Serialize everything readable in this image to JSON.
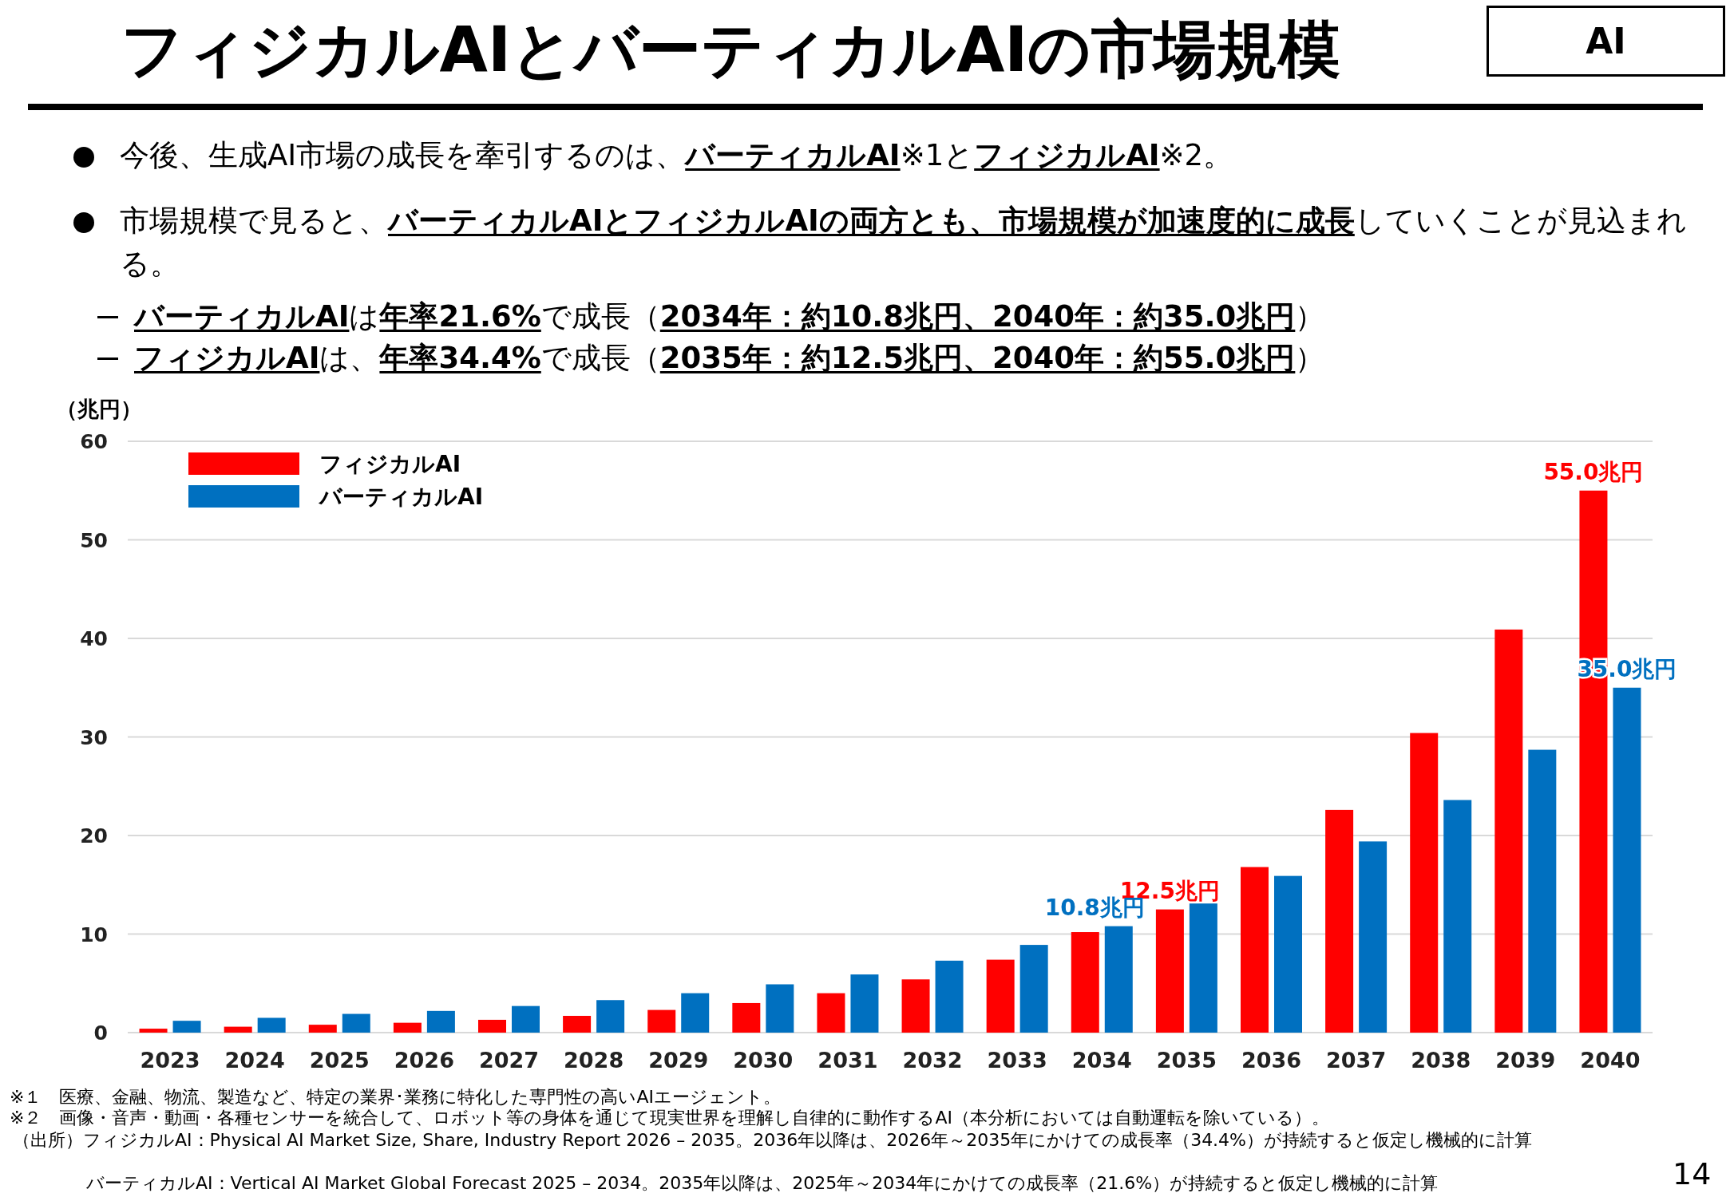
{
  "chart_data": {
    "type": "bar",
    "title": "フィジカルAIとバーティカルAIの市場規模",
    "ylabel": "（兆円）",
    "annotations": [
      "AI",
      "今後、生成AI市場の成長を牽引するのは、**バーティカルAI**※1と**フィジカルAI**※2。",
      "市場規模で見ると、**バーティカルAIとフィジカルAIの両方とも、市場規模が加速度的に成長**していくことが見込まれる。",
      "**バーティカルAI**は**年率21.6%**で成長（**2034年：約10.8兆円、2040年：約35.0兆円**）",
      "**フィジカルAI**は、**年率34.4%**で成長（**2035年：約12.5兆円、2040年：約55.0兆円**）",
      "※１　医療、金融、物流、製造など、特定の業界･業務に特化した専門性の高いAIエージェント。",
      "※２　画像・音声・動画・各種センサーを統合して、ロボット等の身体を通じて現実世界を理解し自律的に動作するAI（本分析においては自動運転を除いている）。",
      "（出所）フィジカルAI：Physical AI Market Size, Share, Industry Report 2026 – 2035。2036年以降は、2026年～2035年にかけての成長率（34.4%）が持続すると仮定し機械的に計算",
      "バーティカルAI：Vertical AI Market Global Forecast 2025 – 2034。2035年以降は、2025年～2034年にかけての成長率（21.6%）が持続すると仮定し機械的に計算",
      "14"
    ],
    "categories": [
      "2023",
      "2024",
      "2025",
      "2026",
      "2027",
      "2028",
      "2029",
      "2030",
      "2031",
      "2032",
      "2033",
      "2034",
      "2035",
      "2036",
      "2037",
      "2038",
      "2039",
      "2040"
    ],
    "series": [
      {
        "name": "フィジカルAI",
        "color": "#ff0000",
        "values": [
          0.4,
          0.6,
          0.8,
          1.0,
          1.3,
          1.7,
          2.3,
          3.0,
          4.0,
          5.4,
          7.4,
          10.2,
          12.5,
          16.8,
          22.6,
          30.4,
          40.9,
          55.0
        ],
        "value_labels": [
          null,
          null,
          null,
          null,
          null,
          null,
          null,
          null,
          null,
          null,
          null,
          null,
          "12.5兆円",
          null,
          null,
          null,
          null,
          "55.0兆円"
        ]
      },
      {
        "name": "バーティカルAI",
        "color": "#0070c0",
        "values": [
          1.2,
          1.5,
          1.9,
          2.2,
          2.7,
          3.3,
          4.0,
          4.9,
          5.9,
          7.3,
          8.9,
          10.8,
          13.1,
          15.9,
          19.4,
          23.6,
          28.7,
          35.0
        ],
        "value_labels": [
          null,
          null,
          null,
          null,
          null,
          null,
          null,
          null,
          null,
          null,
          null,
          "10.8兆円",
          null,
          null,
          null,
          null,
          null,
          "35.0兆円"
        ]
      }
    ],
    "ylim": [
      0,
      60
    ],
    "yticks": [
      0,
      10,
      20,
      30,
      40,
      50,
      60
    ],
    "grid": "y",
    "legend": "top left"
  }
}
